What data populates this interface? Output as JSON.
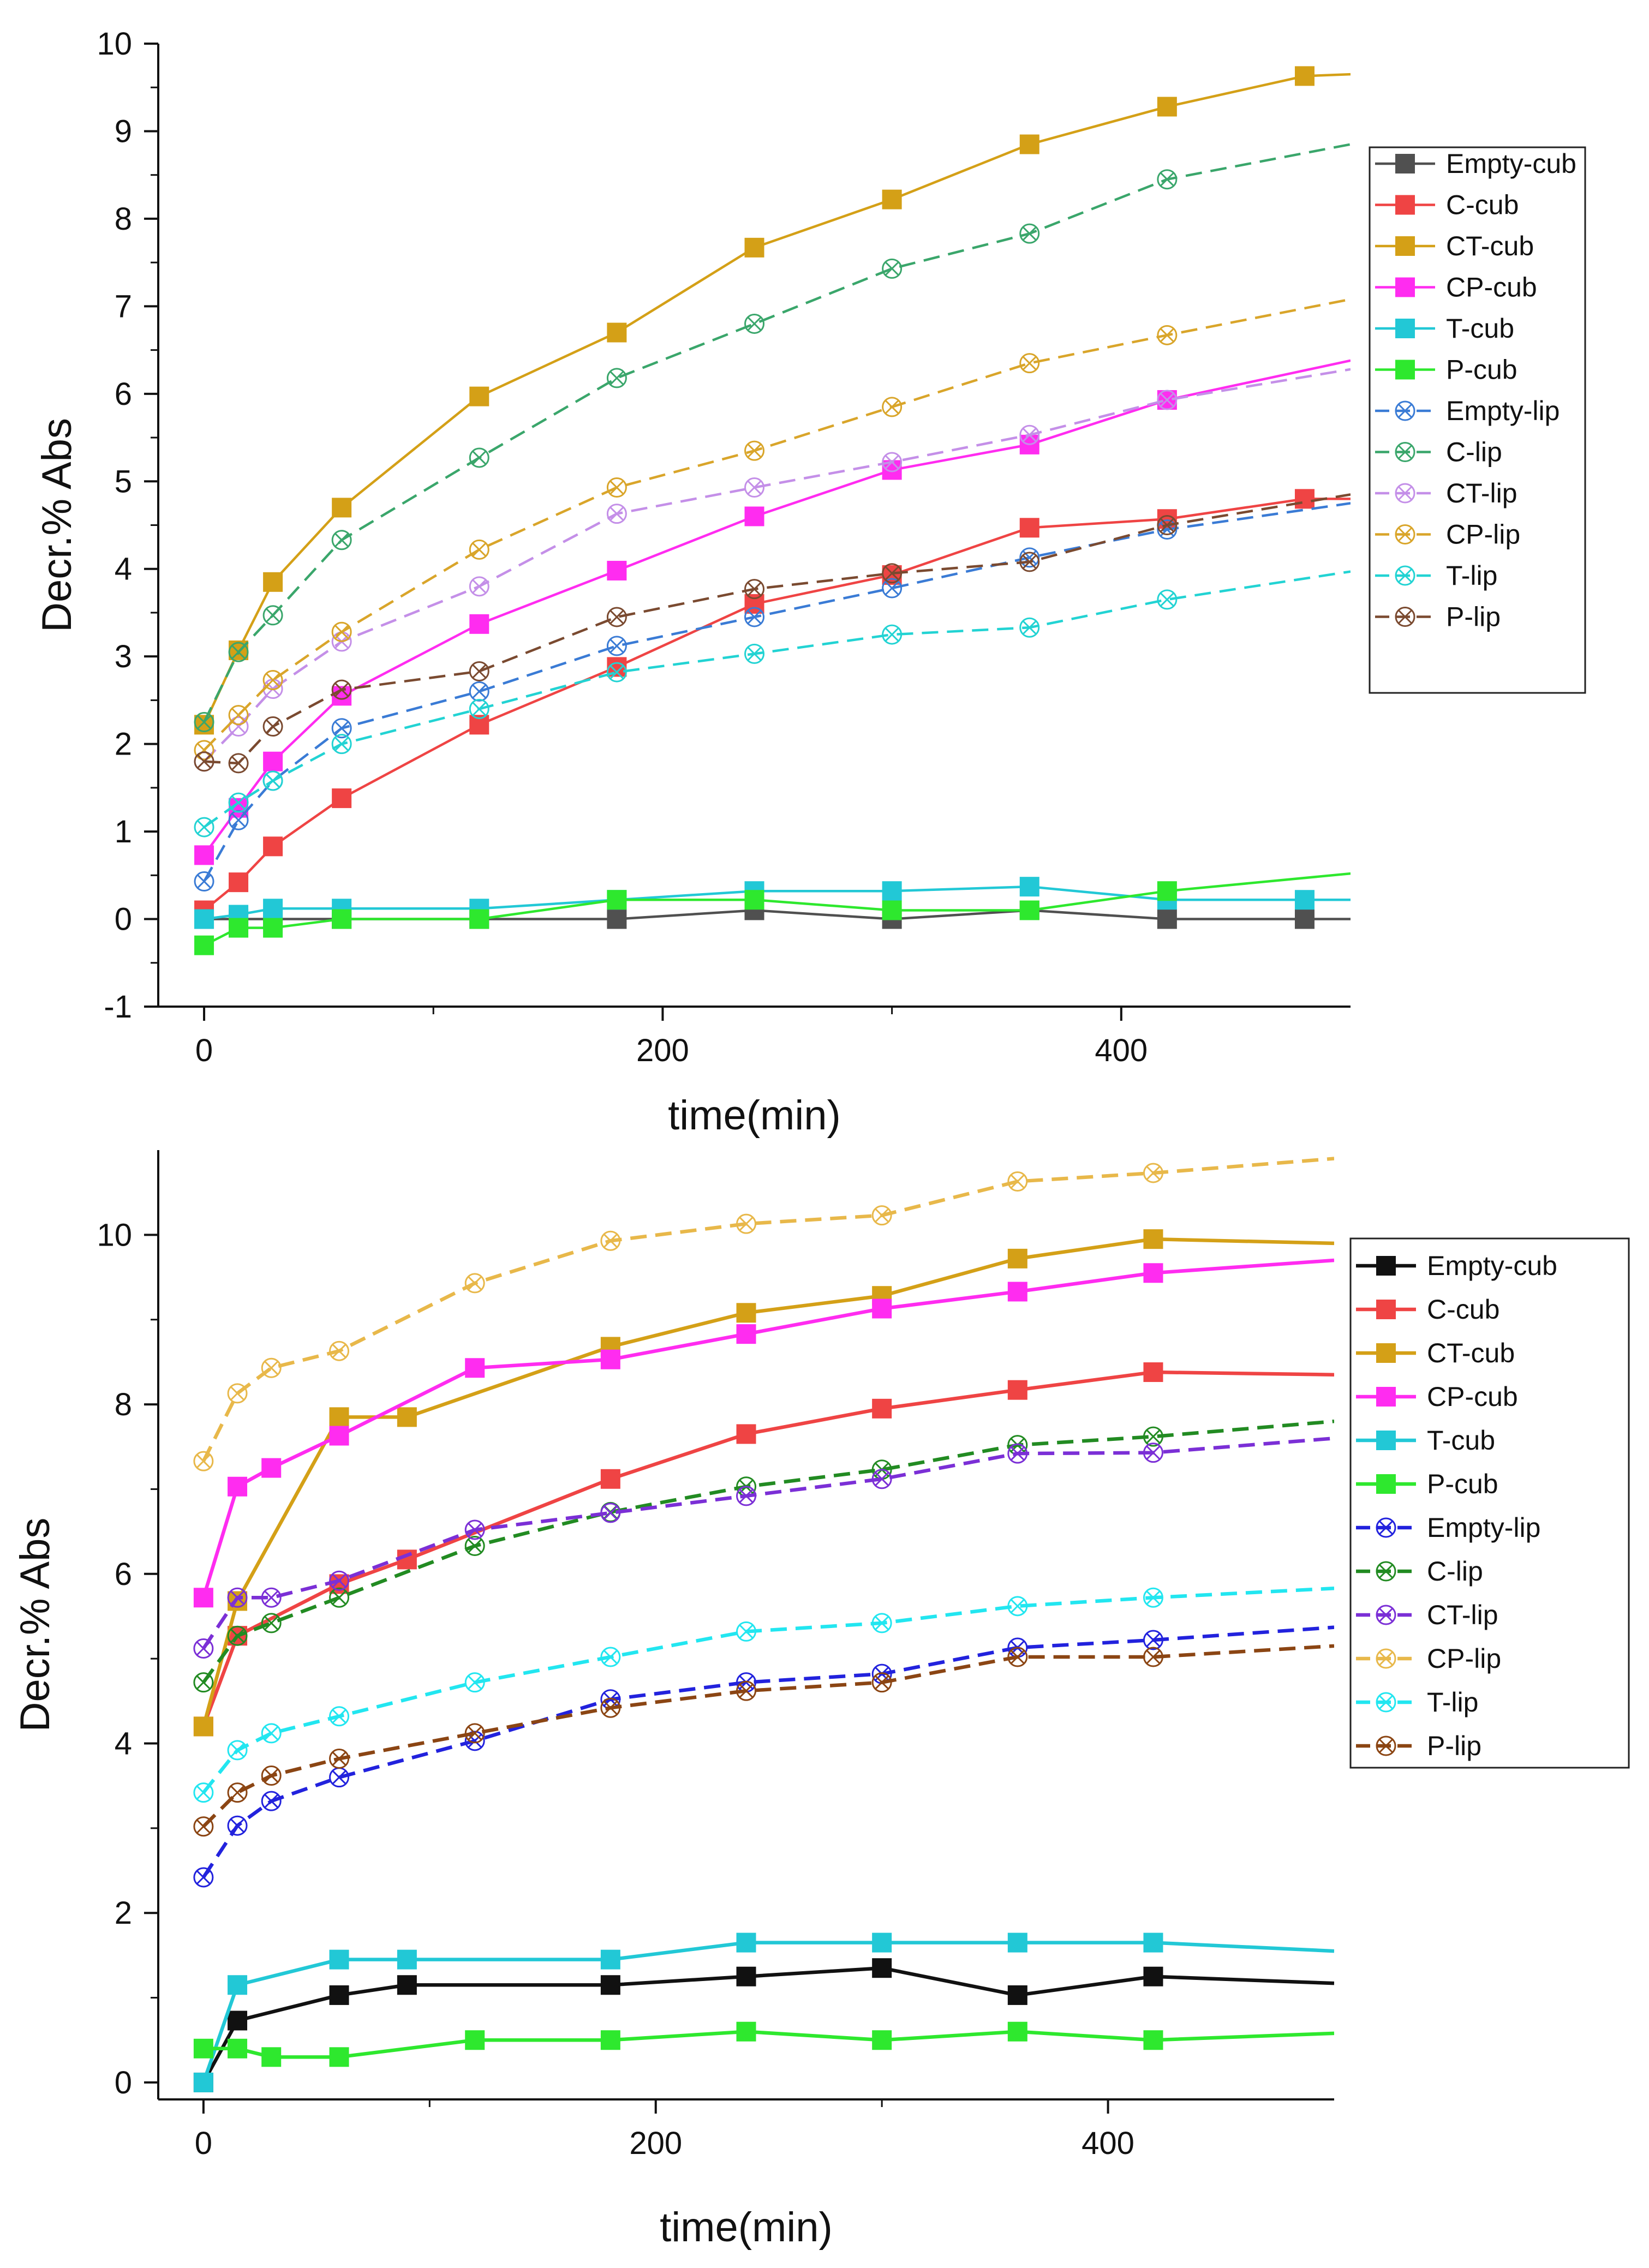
{
  "chart_data": [
    {
      "type": "line",
      "panel": "top",
      "xlabel": "time(min)",
      "ylabel": "Decr.% Abs",
      "xlim": [
        -20,
        500
      ],
      "ylim": [
        -1,
        10
      ],
      "xticks": [
        0,
        200,
        400
      ],
      "yticks": [
        -1,
        0,
        1,
        2,
        3,
        4,
        5,
        6,
        7,
        8,
        9,
        10
      ],
      "legend": "right",
      "series": [
        {
          "name": "Empty-cub",
          "color": "#505050",
          "dashed": false,
          "marker": "square",
          "x": [
            0,
            15,
            30,
            60,
            120,
            180,
            240,
            300,
            360,
            420,
            480,
            500
          ],
          "y": [
            0,
            0,
            0,
            0,
            0,
            0,
            0.1,
            0,
            0.1,
            0,
            0,
            0
          ]
        },
        {
          "name": "C-cub",
          "color": "#ef4444",
          "dashed": false,
          "marker": "square",
          "x": [
            0,
            15,
            30,
            60,
            120,
            180,
            240,
            300,
            360,
            420,
            480,
            500
          ],
          "y": [
            0.1,
            0.42,
            0.83,
            1.38,
            2.22,
            2.88,
            3.6,
            3.93,
            4.47,
            4.57,
            4.8,
            4.8
          ]
        },
        {
          "name": "CT-cub",
          "color": "#d4a017",
          "dashed": false,
          "marker": "square",
          "x": [
            0,
            15,
            30,
            60,
            120,
            180,
            240,
            300,
            360,
            420,
            480,
            500
          ],
          "y": [
            2.22,
            3.07,
            3.85,
            4.7,
            5.97,
            6.7,
            7.67,
            8.22,
            8.85,
            9.28,
            9.63,
            9.65
          ]
        },
        {
          "name": "CP-cub",
          "color": "#ff2cf0",
          "dashed": false,
          "marker": "square",
          "x": [
            0,
            15,
            30,
            60,
            120,
            180,
            240,
            300,
            360,
            420,
            500
          ],
          "y": [
            0.73,
            1.27,
            1.8,
            2.55,
            3.37,
            3.98,
            4.6,
            5.13,
            5.42,
            5.93,
            6.38
          ]
        },
        {
          "name": "T-cub",
          "color": "#22c8d6",
          "dashed": false,
          "marker": "square",
          "x": [
            0,
            15,
            30,
            60,
            120,
            180,
            240,
            300,
            360,
            420,
            480,
            500
          ],
          "y": [
            0,
            0.05,
            0.12,
            0.12,
            0.12,
            0.22,
            0.32,
            0.32,
            0.37,
            0.22,
            0.22,
            0.22
          ]
        },
        {
          "name": "P-cub",
          "color": "#2ee82e",
          "dashed": false,
          "marker": "square",
          "x": [
            0,
            15,
            30,
            60,
            120,
            180,
            240,
            300,
            360,
            420,
            500
          ],
          "y": [
            -0.3,
            -0.1,
            -0.1,
            0,
            0,
            0.22,
            0.22,
            0.1,
            0.1,
            0.32,
            0.52
          ]
        },
        {
          "name": "Empty-lip",
          "color": "#3a7bd5",
          "dashed": true,
          "marker": "xcircle",
          "x": [
            0,
            15,
            30,
            60,
            120,
            180,
            240,
            300,
            360,
            420,
            500
          ],
          "y": [
            0.43,
            1.13,
            1.58,
            2.18,
            2.6,
            3.12,
            3.45,
            3.78,
            4.13,
            4.45,
            4.75
          ]
        },
        {
          "name": "C-lip",
          "color": "#3aa66b",
          "dashed": true,
          "marker": "xcircle",
          "x": [
            0,
            15,
            30,
            60,
            120,
            180,
            240,
            300,
            360,
            420,
            500
          ],
          "y": [
            2.25,
            3.05,
            3.47,
            4.33,
            5.27,
            6.18,
            6.8,
            7.43,
            7.83,
            8.45,
            8.85
          ]
        },
        {
          "name": "CT-lip",
          "color": "#c48fe8",
          "dashed": true,
          "marker": "xcircle",
          "x": [
            0,
            15,
            30,
            60,
            120,
            180,
            240,
            300,
            360,
            420,
            500
          ],
          "y": [
            1.8,
            2.2,
            2.63,
            3.17,
            3.8,
            4.63,
            4.93,
            5.22,
            5.53,
            5.93,
            6.28
          ]
        },
        {
          "name": "CP-lip",
          "color": "#d9a52a",
          "dashed": true,
          "marker": "xcircle",
          "x": [
            0,
            15,
            30,
            60,
            120,
            180,
            240,
            300,
            360,
            420,
            500
          ],
          "y": [
            1.93,
            2.33,
            2.73,
            3.28,
            4.22,
            4.93,
            5.35,
            5.85,
            6.35,
            6.67,
            7.08
          ]
        },
        {
          "name": "T-lip",
          "color": "#22d3d3",
          "dashed": true,
          "marker": "xcircle",
          "x": [
            0,
            15,
            30,
            60,
            120,
            180,
            240,
            300,
            360,
            420,
            500
          ],
          "y": [
            1.05,
            1.33,
            1.58,
            2.0,
            2.4,
            2.82,
            3.03,
            3.25,
            3.33,
            3.65,
            3.97
          ]
        },
        {
          "name": "P-lip",
          "color": "#7a4a30",
          "dashed": true,
          "marker": "xcircle",
          "x": [
            0,
            15,
            30,
            60,
            120,
            180,
            240,
            300,
            360,
            420,
            500
          ],
          "y": [
            1.8,
            1.78,
            2.2,
            2.62,
            2.83,
            3.45,
            3.77,
            3.95,
            4.08,
            4.5,
            4.85
          ]
        }
      ]
    },
    {
      "type": "line",
      "panel": "bottom",
      "xlabel": "time(min)",
      "ylabel": "Decr.% Abs",
      "xlim": [
        -20,
        500
      ],
      "ylim": [
        -0.2,
        11
      ],
      "xticks": [
        0,
        200,
        400
      ],
      "yticks": [
        0,
        2,
        4,
        6,
        8,
        10
      ],
      "legend": "right",
      "series": [
        {
          "name": "Empty-cub",
          "color": "#111111",
          "dashed": false,
          "marker": "square",
          "x": [
            0,
            15,
            60,
            90,
            180,
            240,
            300,
            360,
            420,
            500
          ],
          "y": [
            0,
            0.73,
            1.03,
            1.15,
            1.15,
            1.25,
            1.35,
            1.03,
            1.25,
            1.17
          ]
        },
        {
          "name": "C-cub",
          "color": "#ef4444",
          "dashed": false,
          "marker": "square",
          "x": [
            0,
            15,
            60,
            90,
            180,
            240,
            300,
            360,
            420,
            500
          ],
          "y": [
            4.2,
            5.27,
            5.88,
            6.17,
            7.12,
            7.65,
            7.95,
            8.17,
            8.38,
            8.35
          ]
        },
        {
          "name": "CT-cub",
          "color": "#d4a017",
          "dashed": false,
          "marker": "square",
          "x": [
            0,
            15,
            60,
            90,
            180,
            240,
            300,
            360,
            420,
            500
          ],
          "y": [
            4.2,
            5.68,
            7.85,
            7.85,
            8.68,
            9.08,
            9.28,
            9.72,
            9.95,
            9.9
          ]
        },
        {
          "name": "CP-cub",
          "color": "#ff2cf0",
          "dashed": false,
          "marker": "square",
          "x": [
            0,
            15,
            30,
            60,
            120,
            180,
            240,
            300,
            360,
            420,
            500
          ],
          "y": [
            5.72,
            7.03,
            7.25,
            7.63,
            8.43,
            8.53,
            8.83,
            9.13,
            9.33,
            9.55,
            9.7
          ]
        },
        {
          "name": "T-cub",
          "color": "#22c8d6",
          "dashed": false,
          "marker": "square",
          "x": [
            0,
            15,
            60,
            90,
            180,
            240,
            300,
            360,
            420,
            500
          ],
          "y": [
            0,
            1.15,
            1.45,
            1.45,
            1.45,
            1.65,
            1.65,
            1.65,
            1.65,
            1.55
          ]
        },
        {
          "name": "P-cub",
          "color": "#2ee82e",
          "dashed": false,
          "marker": "square",
          "x": [
            0,
            15,
            30,
            60,
            120,
            180,
            240,
            300,
            360,
            420,
            500
          ],
          "y": [
            0.4,
            0.4,
            0.3,
            0.3,
            0.5,
            0.5,
            0.6,
            0.5,
            0.6,
            0.5,
            0.58
          ]
        },
        {
          "name": "Empty-lip",
          "color": "#2222dd",
          "dashed": true,
          "marker": "xcircle",
          "x": [
            0,
            15,
            30,
            60,
            120,
            180,
            240,
            300,
            360,
            420,
            500
          ],
          "y": [
            2.42,
            3.03,
            3.32,
            3.6,
            4.03,
            4.52,
            4.72,
            4.82,
            5.13,
            5.22,
            5.37
          ]
        },
        {
          "name": "C-lip",
          "color": "#228b22",
          "dashed": true,
          "marker": "xcircle",
          "x": [
            0,
            15,
            30,
            60,
            120,
            180,
            240,
            300,
            360,
            420,
            500
          ],
          "y": [
            4.72,
            5.27,
            5.42,
            5.72,
            6.33,
            6.73,
            7.03,
            7.23,
            7.52,
            7.62,
            7.8
          ]
        },
        {
          "name": "CT-lip",
          "color": "#7b2fd6",
          "dashed": true,
          "marker": "xcircle",
          "x": [
            0,
            15,
            30,
            60,
            120,
            180,
            240,
            300,
            360,
            420,
            500
          ],
          "y": [
            5.12,
            5.72,
            5.72,
            5.92,
            6.52,
            6.72,
            6.92,
            7.12,
            7.42,
            7.43,
            7.6
          ]
        },
        {
          "name": "CP-lip",
          "color": "#e8b84a",
          "dashed": true,
          "marker": "xcircle",
          "x": [
            0,
            15,
            30,
            60,
            120,
            180,
            240,
            300,
            360,
            420,
            500
          ],
          "y": [
            7.33,
            8.13,
            8.43,
            8.63,
            9.43,
            9.93,
            10.13,
            10.23,
            10.63,
            10.73,
            10.9
          ]
        },
        {
          "name": "T-lip",
          "color": "#22e6f0",
          "dashed": true,
          "marker": "xcircle",
          "x": [
            0,
            15,
            30,
            60,
            120,
            180,
            240,
            300,
            360,
            420,
            500
          ],
          "y": [
            3.42,
            3.92,
            4.12,
            4.32,
            4.72,
            5.02,
            5.32,
            5.42,
            5.62,
            5.72,
            5.83
          ]
        },
        {
          "name": "P-lip",
          "color": "#8b4513",
          "dashed": true,
          "marker": "xcircle",
          "x": [
            0,
            15,
            30,
            60,
            120,
            180,
            240,
            300,
            360,
            420,
            500
          ],
          "y": [
            3.02,
            3.42,
            3.62,
            3.82,
            4.12,
            4.42,
            4.62,
            4.72,
            5.02,
            5.02,
            5.15
          ]
        }
      ]
    }
  ]
}
